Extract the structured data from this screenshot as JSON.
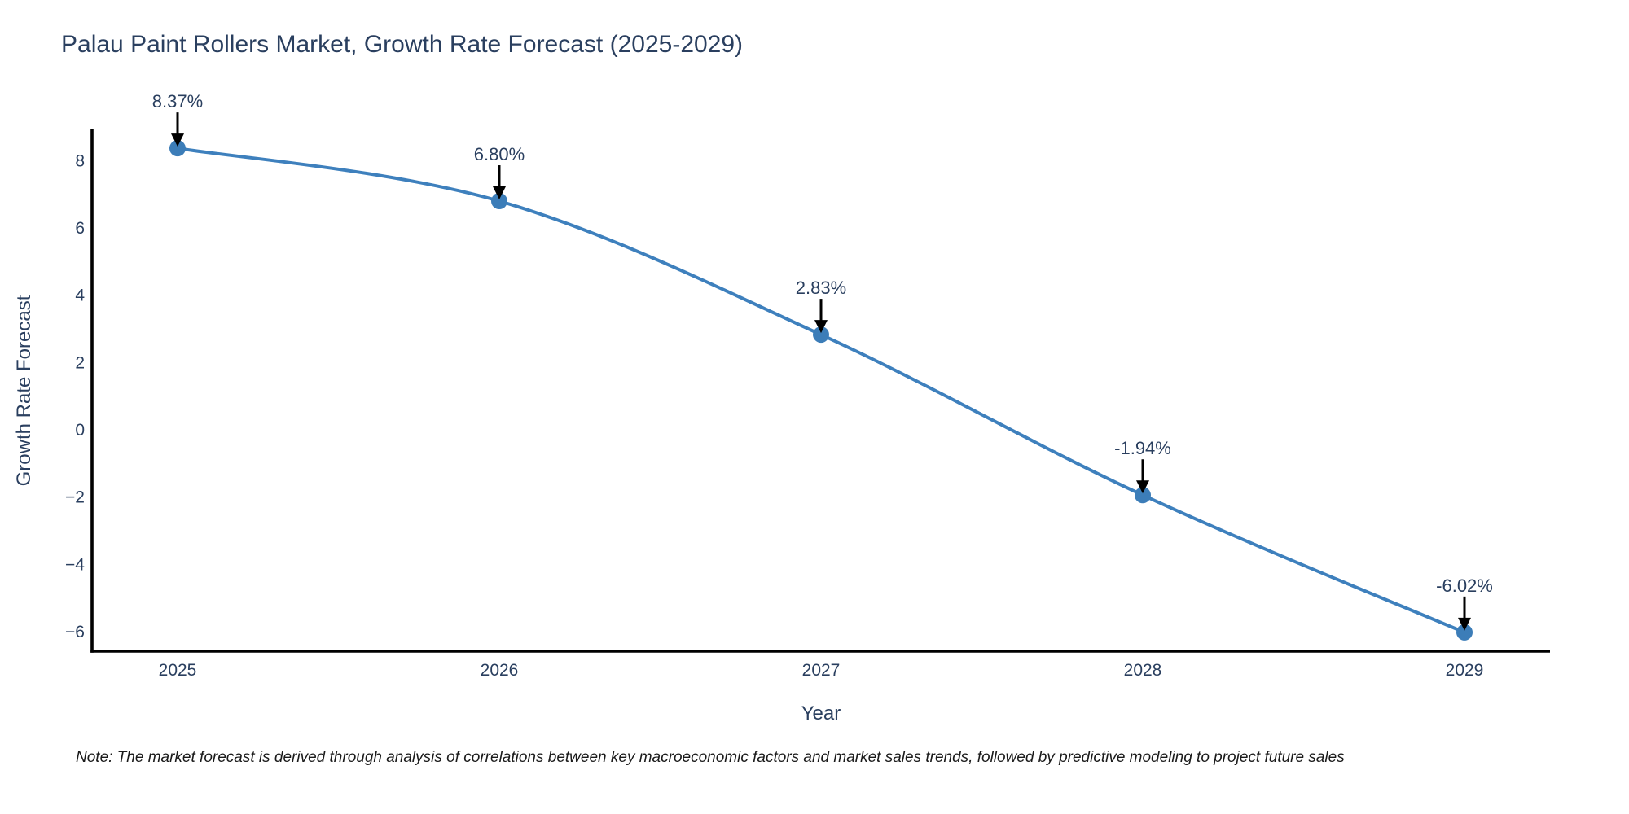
{
  "title": "Palau Paint Rollers Market, Growth Rate Forecast (2025-2029)",
  "note": "Note: The market forecast is derived through analysis of correlations between key macroeconomic factors and market sales trends, followed by predictive modeling to project future sales",
  "chart_data": {
    "type": "line",
    "line_shape": "spline",
    "title": "Palau Paint Rollers Market, Growth Rate Forecast (2025-2029)",
    "xlabel": "Year",
    "ylabel": "Growth Rate Forecast",
    "categories": [
      "2025",
      "2026",
      "2027",
      "2028",
      "2029"
    ],
    "series": [
      {
        "name": "Growth Rate Forecast",
        "values": [
          8.37,
          6.8,
          2.83,
          -1.94,
          -6.02
        ]
      }
    ],
    "point_labels": [
      "8.37%",
      "6.80%",
      "2.83%",
      "-1.94%",
      "-6.02%"
    ],
    "yticks": [
      8,
      6,
      4,
      2,
      0,
      -2,
      -4,
      -6
    ],
    "ytick_labels": [
      "8",
      "6",
      "4",
      "2",
      "0",
      "−2",
      "−4",
      "−6"
    ],
    "ylim": [
      -6.58,
      8.93
    ],
    "grid": false,
    "legend": false,
    "colors": {
      "line": "#3e80bd",
      "marker": "#3c7db8",
      "axis": "#000000",
      "text": "#2a3f5f",
      "annotation_arrow": "#000000"
    }
  }
}
